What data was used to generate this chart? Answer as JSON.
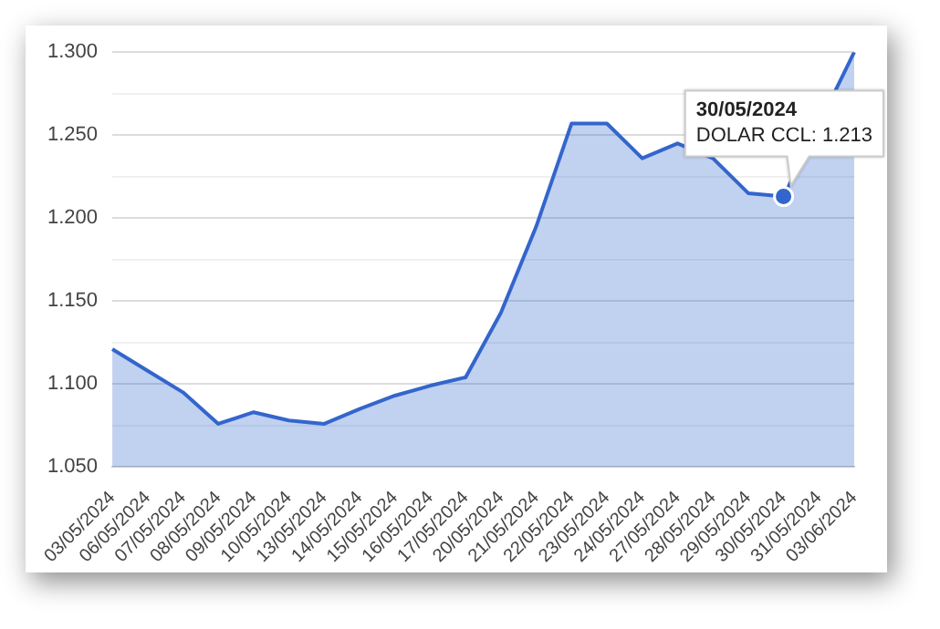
{
  "chart_data": {
    "type": "area",
    "categories": [
      "03/05/2024",
      "06/05/2024",
      "07/05/2024",
      "08/05/2024",
      "09/05/2024",
      "10/05/2024",
      "13/05/2024",
      "14/05/2024",
      "15/05/2024",
      "16/05/2024",
      "17/05/2024",
      "20/05/2024",
      "21/05/2024",
      "22/05/2024",
      "23/05/2024",
      "24/05/2024",
      "27/05/2024",
      "28/05/2024",
      "29/05/2024",
      "30/05/2024",
      "31/05/2024",
      "03/06/2024"
    ],
    "series": [
      {
        "color": "#3366cc",
        "values": [
          1121,
          1108,
          1095,
          1076,
          1083,
          1078,
          1076,
          1085,
          1093,
          1099,
          1104,
          1143,
          1195,
          1257,
          1257,
          1236,
          1245,
          1236,
          1215,
          1213,
          null,
          1300
        ]
      }
    ],
    "ylim": [
      1050,
      1300
    ],
    "yticks": [
      {
        "value": 1050,
        "label": "1.050"
      },
      {
        "value": 1075,
        "label": null
      },
      {
        "value": 1100,
        "label": "1.100"
      },
      {
        "value": 1125,
        "label": null
      },
      {
        "value": 1150,
        "label": "1.150"
      },
      {
        "value": 1175,
        "label": null
      },
      {
        "value": 1200,
        "label": "1.200"
      },
      {
        "value": 1225,
        "label": null
      },
      {
        "value": 1250,
        "label": "1.250"
      },
      {
        "value": 1275,
        "label": null
      },
      {
        "value": 1300,
        "label": "1.300"
      }
    ],
    "grid": "y",
    "legend": false,
    "marker": "none",
    "line_style": "solid",
    "annotations": [
      {
        "text": "30/05/2024\nDOLAR CCL: 1.213",
        "x": "30/05/2024",
        "y": 1213
      }
    ]
  }
}
